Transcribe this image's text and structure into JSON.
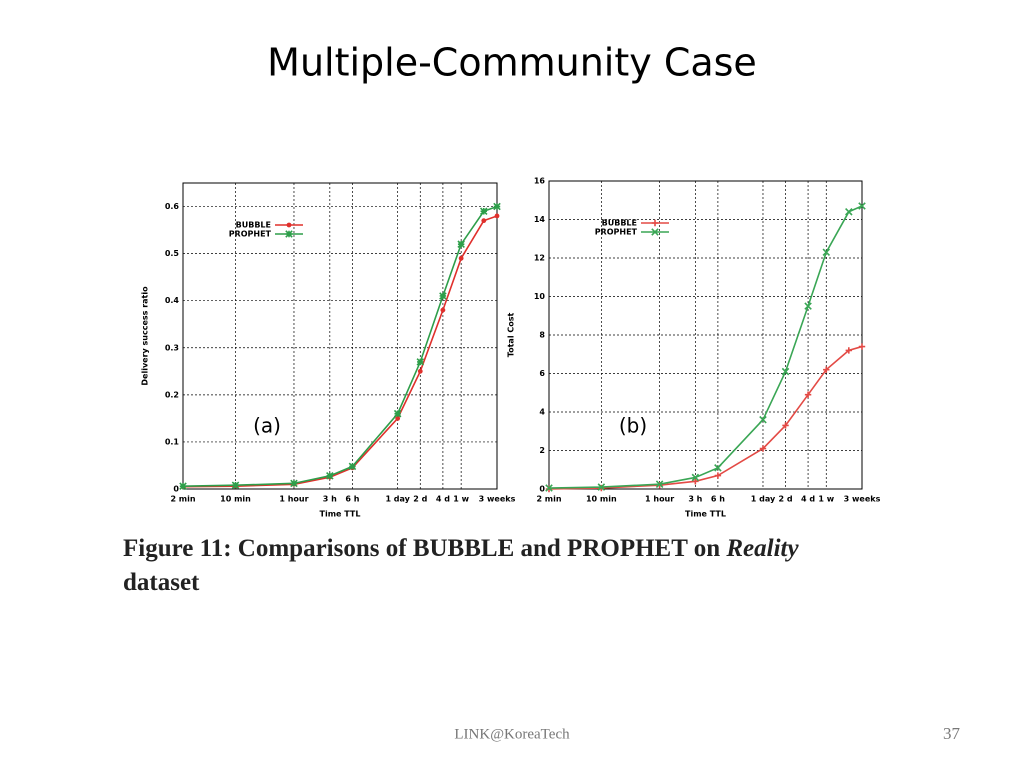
{
  "slide": {
    "title": "Multiple-Community Case",
    "caption": {
      "before": "Figure 11:  Comparisons of BUBBLE and PROPHET on",
      "emphasis": "Reality",
      "after": "dataset"
    },
    "footer": "LINK@KoreaTech",
    "page_number": "37"
  },
  "chart_data": [
    {
      "type": "line",
      "annotation": "(a)",
      "x_label": "Time TTL",
      "y_label": "Delivery success ratio",
      "xscale": "log",
      "xlim": [
        2,
        30240
      ],
      "xticks": [
        {
          "value": 2,
          "label": "2 min"
        },
        {
          "value": 10,
          "label": "10 min"
        },
        {
          "value": 60,
          "label": "1 hour"
        },
        {
          "value": 180,
          "label": "3 h"
        },
        {
          "value": 360,
          "label": "6 h"
        },
        {
          "value": 1440,
          "label": "1 day"
        },
        {
          "value": 2880,
          "label": "2 d"
        },
        {
          "value": 5760,
          "label": "4 d"
        },
        {
          "value": 10080,
          "label": "1 w"
        },
        {
          "value": 30240,
          "label": "3 weeks"
        }
      ],
      "ylim": [
        0,
        0.65
      ],
      "yticks": [
        0,
        0.1,
        0.2,
        0.3,
        0.4,
        0.5,
        0.6
      ],
      "grid": true,
      "legend": "upper left",
      "x": [
        2,
        10,
        60,
        180,
        360,
        1440,
        2880,
        5760,
        10080,
        20160,
        30240
      ],
      "series": [
        {
          "name": "BUBBLE",
          "color": "#e0302c",
          "marker": "circle",
          "values": [
            0.005,
            0.006,
            0.01,
            0.025,
            0.045,
            0.15,
            0.25,
            0.38,
            0.49,
            0.57,
            0.58
          ]
        },
        {
          "name": "PROPHET",
          "color": "#2e9e4a",
          "marker": "star",
          "values": [
            0.006,
            0.008,
            0.012,
            0.028,
            0.048,
            0.16,
            0.27,
            0.41,
            0.52,
            0.59,
            0.6
          ]
        }
      ]
    },
    {
      "type": "line",
      "annotation": "(b)",
      "x_label": "Time TTL",
      "y_label": "Total Cost",
      "xscale": "log",
      "xlim": [
        2,
        30240
      ],
      "xticks": [
        {
          "value": 2,
          "label": "2 min"
        },
        {
          "value": 10,
          "label": "10 min"
        },
        {
          "value": 60,
          "label": "1 hour"
        },
        {
          "value": 180,
          "label": "3 h"
        },
        {
          "value": 360,
          "label": "6 h"
        },
        {
          "value": 1440,
          "label": "1 day"
        },
        {
          "value": 2880,
          "label": "2 d"
        },
        {
          "value": 5760,
          "label": "4 d"
        },
        {
          "value": 10080,
          "label": "1 w"
        },
        {
          "value": 30240,
          "label": "3 weeks"
        }
      ],
      "ylim": [
        0,
        16
      ],
      "yticks": [
        0,
        2,
        4,
        6,
        8,
        10,
        12,
        14,
        16
      ],
      "grid": true,
      "legend": "upper left",
      "x": [
        2,
        10,
        60,
        180,
        360,
        1440,
        2880,
        5760,
        10080,
        20160,
        30240
      ],
      "series": [
        {
          "name": "BUBBLE",
          "color": "#e34a45",
          "marker": "plus",
          "values": [
            0,
            0.05,
            0.2,
            0.4,
            0.7,
            2.1,
            3.3,
            4.9,
            6.2,
            7.2,
            7.4
          ]
        },
        {
          "name": "PROPHET",
          "color": "#3aa655",
          "marker": "x",
          "values": [
            0.05,
            0.1,
            0.25,
            0.6,
            1.1,
            3.6,
            6.1,
            9.5,
            12.3,
            14.4,
            14.7
          ]
        }
      ]
    }
  ]
}
